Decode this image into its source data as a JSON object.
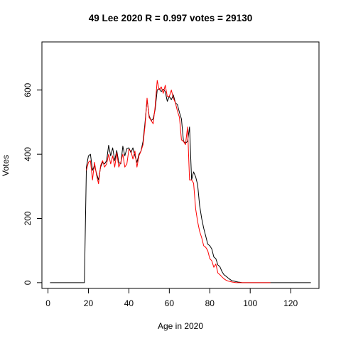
{
  "chart_data": {
    "type": "line",
    "title": "49 Lee 2020 R = 0.997 votes = 29130",
    "xlabel": "Age in 2020",
    "ylabel": "Votes",
    "xlim": [
      -3,
      134
    ],
    "ylim": [
      -18,
      750
    ],
    "xticks": [
      0,
      20,
      40,
      60,
      80,
      100,
      120
    ],
    "yticks": [
      0,
      200,
      400,
      600
    ],
    "grid": false,
    "series": [
      {
        "color": "#000000",
        "x": [
          1,
          2,
          3,
          4,
          5,
          6,
          7,
          8,
          9,
          10,
          11,
          12,
          13,
          14,
          15,
          16,
          17,
          18,
          19,
          20,
          21,
          22,
          23,
          24,
          25,
          26,
          27,
          28,
          29,
          30,
          31,
          32,
          33,
          34,
          35,
          36,
          37,
          38,
          39,
          40,
          41,
          42,
          43,
          44,
          45,
          46,
          47,
          48,
          49,
          50,
          51,
          52,
          53,
          54,
          55,
          56,
          57,
          58,
          59,
          60,
          61,
          62,
          63,
          64,
          65,
          66,
          67,
          68,
          69,
          70,
          71,
          72,
          73,
          74,
          75,
          76,
          77,
          78,
          79,
          80,
          81,
          82,
          83,
          84,
          85,
          86,
          87,
          88,
          89,
          90,
          91,
          92,
          93,
          94,
          95,
          96,
          97,
          98,
          99,
          100,
          101,
          102,
          103,
          104,
          105,
          106,
          107,
          108,
          109,
          110,
          111,
          112,
          113,
          114,
          115,
          116,
          117,
          118,
          119,
          120,
          121,
          122,
          123,
          124,
          125,
          126,
          127,
          128,
          129,
          130
        ],
        "values": [
          0,
          0,
          0,
          0,
          0,
          0,
          0,
          0,
          0,
          0,
          0,
          0,
          0,
          0,
          0,
          0,
          0,
          0,
          360,
          395,
          400,
          350,
          365,
          340,
          320,
          360,
          375,
          370,
          380,
          428,
          395,
          420,
          380,
          412,
          375,
          370,
          425,
          395,
          418,
          420,
          405,
          420,
          395,
          375,
          400,
          410,
          440,
          500,
          570,
          520,
          505,
          510,
          540,
          600,
          605,
          595,
          603,
          595,
          565,
          580,
          570,
          585,
          560,
          555,
          530,
          510,
          440,
          435,
          440,
          485,
          320,
          345,
          330,
          305,
          240,
          200,
          170,
          145,
          120,
          115,
          105,
          80,
          75,
          55,
          50,
          35,
          25,
          20,
          15,
          10,
          6,
          5,
          3,
          2,
          1,
          0,
          0,
          0,
          0,
          0,
          0,
          0,
          0,
          0,
          0,
          0,
          0,
          0,
          0,
          0,
          0,
          0,
          0,
          0,
          0,
          0,
          0,
          0,
          0,
          0,
          0,
          0,
          0,
          0,
          0,
          0,
          0,
          0,
          0,
          0
        ]
      },
      {
        "color": "#ff0000",
        "x": [
          19,
          20,
          21,
          22,
          23,
          24,
          25,
          26,
          27,
          28,
          29,
          30,
          31,
          32,
          33,
          34,
          35,
          36,
          37,
          38,
          39,
          40,
          41,
          42,
          43,
          44,
          45,
          46,
          47,
          48,
          49,
          50,
          51,
          52,
          53,
          54,
          55,
          56,
          57,
          58,
          59,
          60,
          61,
          62,
          63,
          64,
          65,
          66,
          67,
          68,
          69,
          70,
          71,
          72,
          73,
          74,
          75,
          76,
          77,
          78,
          79,
          80,
          81,
          82,
          83,
          84,
          85,
          86,
          87,
          88,
          89,
          90,
          91,
          92,
          93,
          94,
          95,
          96,
          97,
          98,
          99,
          100,
          101,
          102,
          103,
          104,
          105,
          106,
          107,
          108,
          109,
          110
        ],
        "values": [
          350,
          375,
          380,
          320,
          375,
          335,
          308,
          365,
          380,
          360,
          370,
          400,
          370,
          395,
          360,
          405,
          360,
          375,
          400,
          360,
          370,
          415,
          410,
          385,
          410,
          360,
          395,
          410,
          430,
          490,
          575,
          515,
          505,
          495,
          550,
          630,
          600,
          610,
          590,
          615,
          580,
          580,
          600,
          575,
          560,
          535,
          515,
          445,
          440,
          430,
          485,
          320,
          320,
          310,
          230,
          190,
          160,
          140,
          115,
          110,
          100,
          75,
          68,
          48,
          58,
          30,
          25,
          18,
          12,
          8,
          5,
          4,
          2,
          1,
          0,
          0,
          0,
          0,
          0,
          0,
          0,
          0,
          0,
          0,
          0,
          0,
          0,
          0,
          0,
          0,
          0,
          0
        ]
      }
    ]
  }
}
